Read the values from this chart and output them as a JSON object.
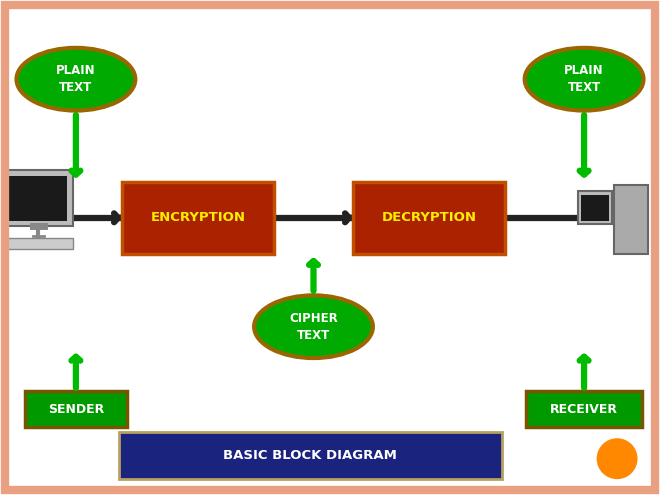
{
  "bg_color": "#ffffff",
  "slide_border_color": "#e8a080",
  "title_text": "BASIC BLOCK DIAGRAM",
  "title_bg": "#1a237e",
  "title_fg": "#ffffff",
  "title_border": "#b8a060",
  "encryption_label": "ENCRYPTION",
  "decryption_label": "DECRYPTION",
  "encryption_color": "#aa2200",
  "decryption_color": "#aa2200",
  "box_border_color": "#c05000",
  "label_color": "#ffee00",
  "arrow_color": "#00bb00",
  "main_arrow_color": "#222222",
  "ellipse_color": "#00aa00",
  "ellipse_border": "#996600",
  "sender_color": "#009900",
  "sender_border": "#7a5500",
  "receiver_color": "#009900",
  "receiver_border": "#7a5500",
  "sender_label": "SENDER",
  "receiver_label": "RECEIVER",
  "plain_text_label": "PLAIN\nTEXT",
  "cipher_text_label": "CIPHER\nTEXT",
  "orange_dot_color": "#ff8800"
}
